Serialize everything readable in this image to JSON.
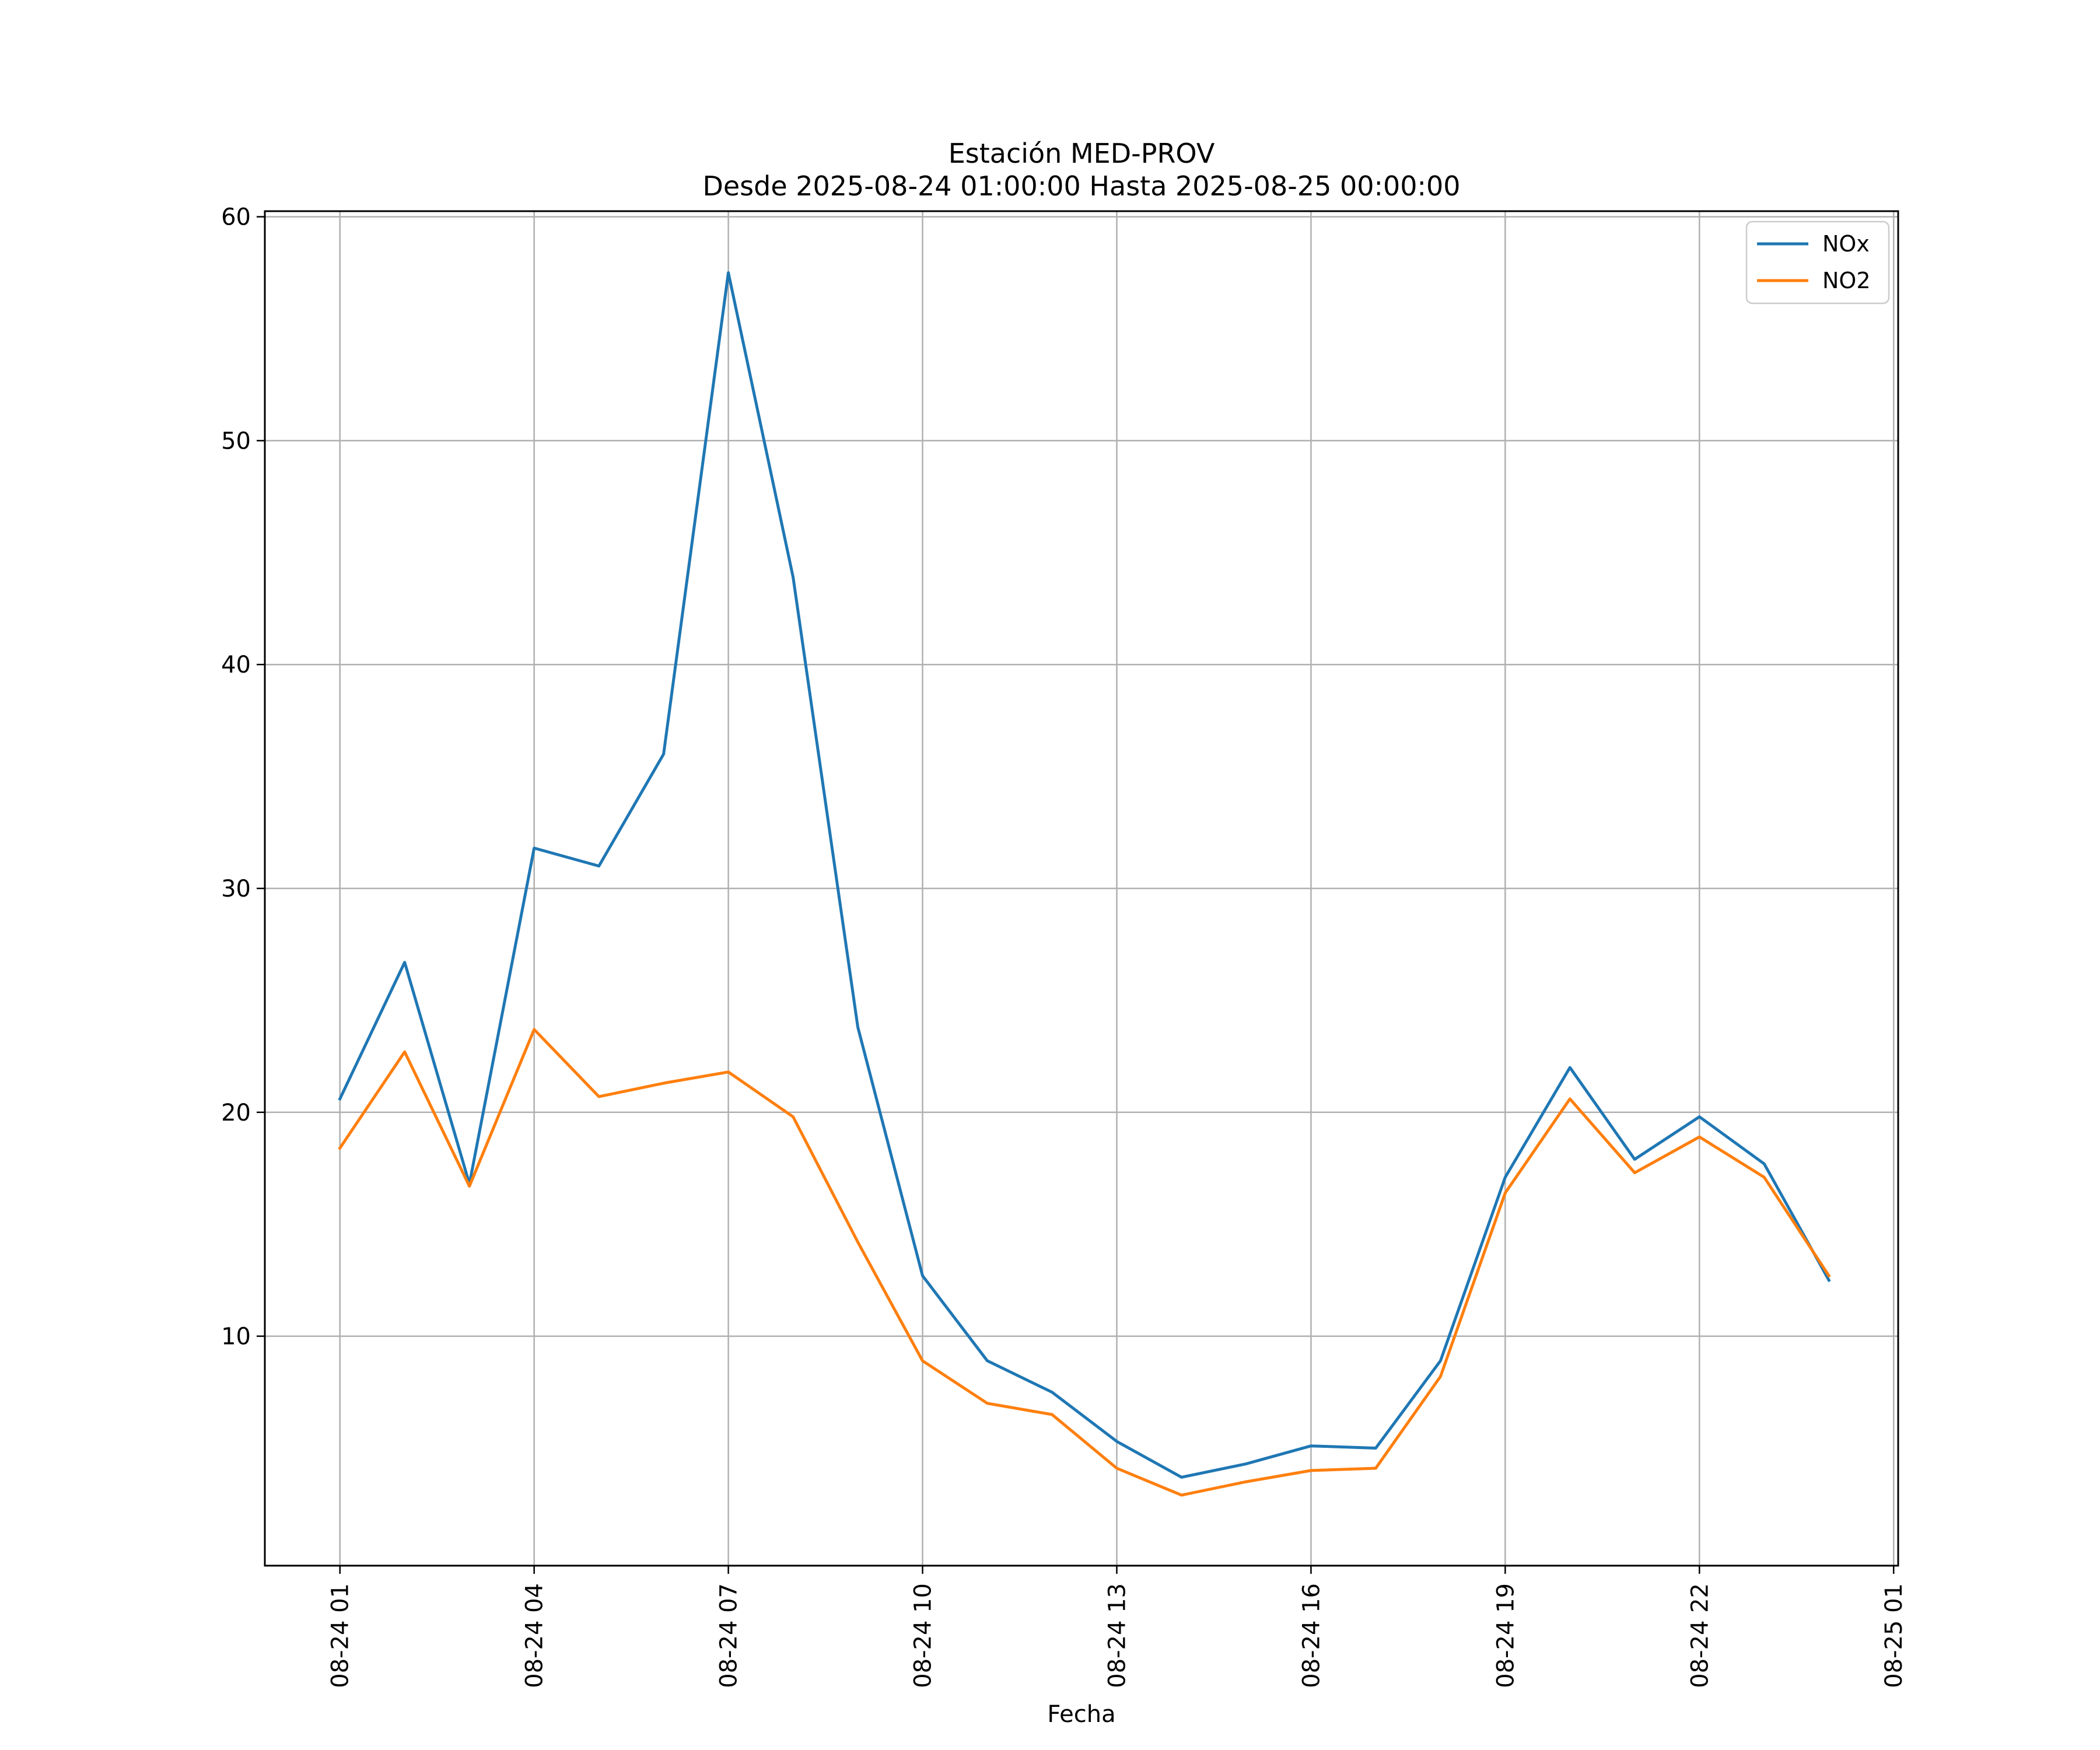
{
  "chart_data": {
    "type": "line",
    "title_lines": [
      "Estación MED-PROV",
      "Desde 2025-08-24 01:00:00 Hasta 2025-08-25 00:00:00"
    ],
    "xlabel": "Fecha",
    "ylabel": "",
    "x_start": "2025-08-24 01:00",
    "x_step": "1h",
    "xlim": [
      "2025-08-24 00:00",
      "2025-08-25 01:00"
    ],
    "x_tick_labels": [
      "08-24 01",
      "08-24 04",
      "08-24 07",
      "08-24 10",
      "08-24 13",
      "08-24 16",
      "08-24 19",
      "08-24 22",
      "08-25 01"
    ],
    "x_tick_hours": [
      1,
      4,
      7,
      10,
      13,
      16,
      19,
      22,
      25
    ],
    "ylim": [
      0,
      60
    ],
    "y_ticks": [
      10,
      20,
      30,
      40,
      50,
      60
    ],
    "grid": true,
    "legend_position": "top-right",
    "series": [
      {
        "name": "NOx",
        "color": "#1f77b4",
        "values": [
          20.6,
          26.7,
          16.8,
          31.8,
          31.0,
          36.0,
          57.5,
          43.9,
          23.8,
          12.7,
          8.9,
          7.5,
          5.3,
          3.7,
          4.3,
          5.1,
          5.0,
          8.9,
          17.1,
          22.0,
          17.9,
          19.8,
          17.7,
          12.5
        ]
      },
      {
        "name": "NO2",
        "color": "#ff7f0e",
        "values": [
          18.4,
          22.7,
          16.7,
          23.7,
          20.7,
          21.3,
          21.8,
          19.8,
          14.2,
          8.9,
          7.0,
          6.5,
          4.1,
          2.9,
          3.5,
          4.0,
          4.1,
          8.2,
          16.4,
          20.6,
          17.3,
          18.9,
          17.1,
          12.7
        ]
      }
    ]
  }
}
